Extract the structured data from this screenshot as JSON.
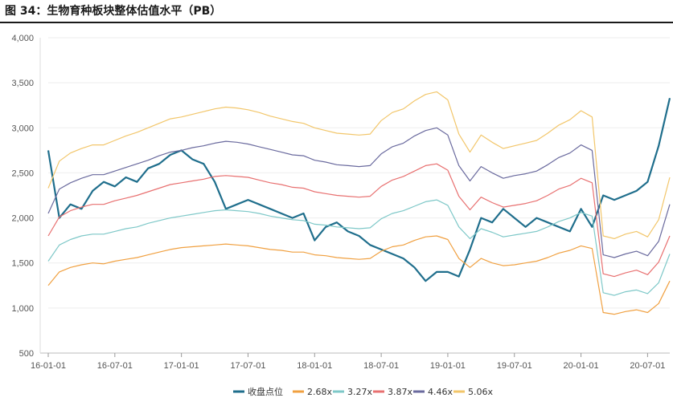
{
  "title": "图 34：生物育种板块整体估值水平（PB）",
  "chart_data": {
    "type": "line",
    "ylim": [
      500,
      4000
    ],
    "yticks": [
      "4,000",
      "3,500",
      "3,000",
      "2,500",
      "2,000",
      "1,500",
      "1,000",
      "500"
    ],
    "ytick_values": [
      4000,
      3500,
      3000,
      2500,
      2000,
      1500,
      1000,
      500
    ],
    "xticks": [
      "16-01-01",
      "16-07-01",
      "17-01-01",
      "17-07-01",
      "18-01-01",
      "18-07-01",
      "19-01-01",
      "19-07-01",
      "20-01-01",
      "20-07-01"
    ],
    "x": [
      "2016-01",
      "2016-02",
      "2016-03",
      "2016-04",
      "2016-05",
      "2016-06",
      "2016-07",
      "2016-08",
      "2016-09",
      "2016-10",
      "2016-11",
      "2016-12",
      "2017-01",
      "2017-02",
      "2017-03",
      "2017-04",
      "2017-05",
      "2017-06",
      "2017-07",
      "2017-08",
      "2017-09",
      "2017-10",
      "2017-11",
      "2017-12",
      "2018-01",
      "2018-02",
      "2018-03",
      "2018-04",
      "2018-05",
      "2018-06",
      "2018-07",
      "2018-08",
      "2018-09",
      "2018-10",
      "2018-11",
      "2018-12",
      "2019-01",
      "2019-02",
      "2019-03",
      "2019-04",
      "2019-05",
      "2019-06",
      "2019-07",
      "2019-08",
      "2019-09",
      "2019-10",
      "2019-11",
      "2019-12",
      "2020-01",
      "2020-02",
      "2020-03",
      "2020-04",
      "2020-05",
      "2020-06",
      "2020-07",
      "2020-08",
      "2020-09"
    ],
    "series": [
      {
        "name": "收盘点位",
        "color": "#1f6e8c",
        "width": 2.2,
        "values": [
          2750,
          2000,
          2150,
          2100,
          2300,
          2400,
          2350,
          2450,
          2400,
          2550,
          2600,
          2700,
          2750,
          2650,
          2600,
          2400,
          2100,
          2150,
          2200,
          2150,
          2100,
          2050,
          2000,
          2050,
          1750,
          1900,
          1950,
          1850,
          1800,
          1700,
          1650,
          1600,
          1550,
          1450,
          1300,
          1400,
          1400,
          1350,
          1650,
          2000,
          1950,
          2100,
          2000,
          1900,
          2000,
          1950,
          1900,
          1850,
          2100,
          1900,
          2250,
          2200,
          2250,
          2300,
          2400,
          2800,
          3330
        ]
      },
      {
        "name": "2.68x",
        "color": "#f0a040",
        "width": 1.2,
        "values": [
          1250,
          1400,
          1450,
          1480,
          1500,
          1490,
          1520,
          1540,
          1560,
          1590,
          1620,
          1650,
          1670,
          1680,
          1690,
          1700,
          1710,
          1700,
          1690,
          1670,
          1650,
          1640,
          1620,
          1620,
          1590,
          1580,
          1560,
          1550,
          1540,
          1550,
          1630,
          1680,
          1700,
          1750,
          1790,
          1800,
          1760,
          1550,
          1450,
          1550,
          1500,
          1470,
          1480,
          1500,
          1520,
          1560,
          1610,
          1640,
          1690,
          1660,
          950,
          930,
          960,
          980,
          950,
          1050,
          1300
        ]
      },
      {
        "name": "3.27x",
        "color": "#7ec8c8",
        "width": 1.2,
        "values": [
          1520,
          1700,
          1760,
          1800,
          1820,
          1820,
          1850,
          1880,
          1900,
          1940,
          1970,
          2000,
          2020,
          2040,
          2060,
          2080,
          2090,
          2080,
          2070,
          2050,
          2020,
          2000,
          1980,
          1970,
          1930,
          1920,
          1900,
          1890,
          1880,
          1890,
          1990,
          2050,
          2080,
          2130,
          2180,
          2200,
          2140,
          1900,
          1770,
          1880,
          1840,
          1790,
          1810,
          1830,
          1850,
          1900,
          1960,
          2000,
          2060,
          2020,
          1170,
          1140,
          1180,
          1200,
          1160,
          1280,
          1600
        ]
      },
      {
        "name": "3.87x",
        "color": "#e87070",
        "width": 1.2,
        "values": [
          1800,
          2010,
          2080,
          2120,
          2150,
          2150,
          2190,
          2220,
          2250,
          2290,
          2330,
          2370,
          2390,
          2410,
          2430,
          2460,
          2470,
          2460,
          2450,
          2420,
          2390,
          2370,
          2340,
          2330,
          2290,
          2270,
          2250,
          2240,
          2230,
          2240,
          2350,
          2420,
          2460,
          2520,
          2580,
          2600,
          2530,
          2240,
          2090,
          2230,
          2170,
          2120,
          2140,
          2160,
          2190,
          2250,
          2320,
          2360,
          2440,
          2390,
          1380,
          1350,
          1390,
          1420,
          1370,
          1510,
          1800
        ]
      },
      {
        "name": "4.46x",
        "color": "#6a6a9e",
        "width": 1.2,
        "values": [
          2050,
          2320,
          2390,
          2440,
          2480,
          2480,
          2520,
          2560,
          2600,
          2640,
          2690,
          2730,
          2750,
          2780,
          2800,
          2830,
          2850,
          2840,
          2820,
          2790,
          2760,
          2730,
          2700,
          2690,
          2640,
          2620,
          2590,
          2580,
          2570,
          2580,
          2710,
          2790,
          2830,
          2910,
          2970,
          3000,
          2920,
          2580,
          2410,
          2570,
          2500,
          2440,
          2470,
          2490,
          2520,
          2590,
          2670,
          2720,
          2810,
          2750,
          1590,
          1560,
          1600,
          1630,
          1580,
          1740,
          2150
        ]
      },
      {
        "name": "5.06x",
        "color": "#f2c66a",
        "width": 1.2,
        "values": [
          2330,
          2630,
          2720,
          2770,
          2810,
          2810,
          2860,
          2910,
          2950,
          3000,
          3050,
          3100,
          3120,
          3150,
          3180,
          3210,
          3230,
          3220,
          3200,
          3170,
          3130,
          3100,
          3070,
          3050,
          3000,
          2970,
          2940,
          2930,
          2920,
          2930,
          3080,
          3170,
          3210,
          3300,
          3370,
          3400,
          3310,
          2930,
          2730,
          2920,
          2840,
          2770,
          2800,
          2830,
          2860,
          2940,
          3030,
          3090,
          3190,
          3120,
          1800,
          1770,
          1820,
          1850,
          1790,
          1980,
          2450
        ]
      }
    ]
  }
}
